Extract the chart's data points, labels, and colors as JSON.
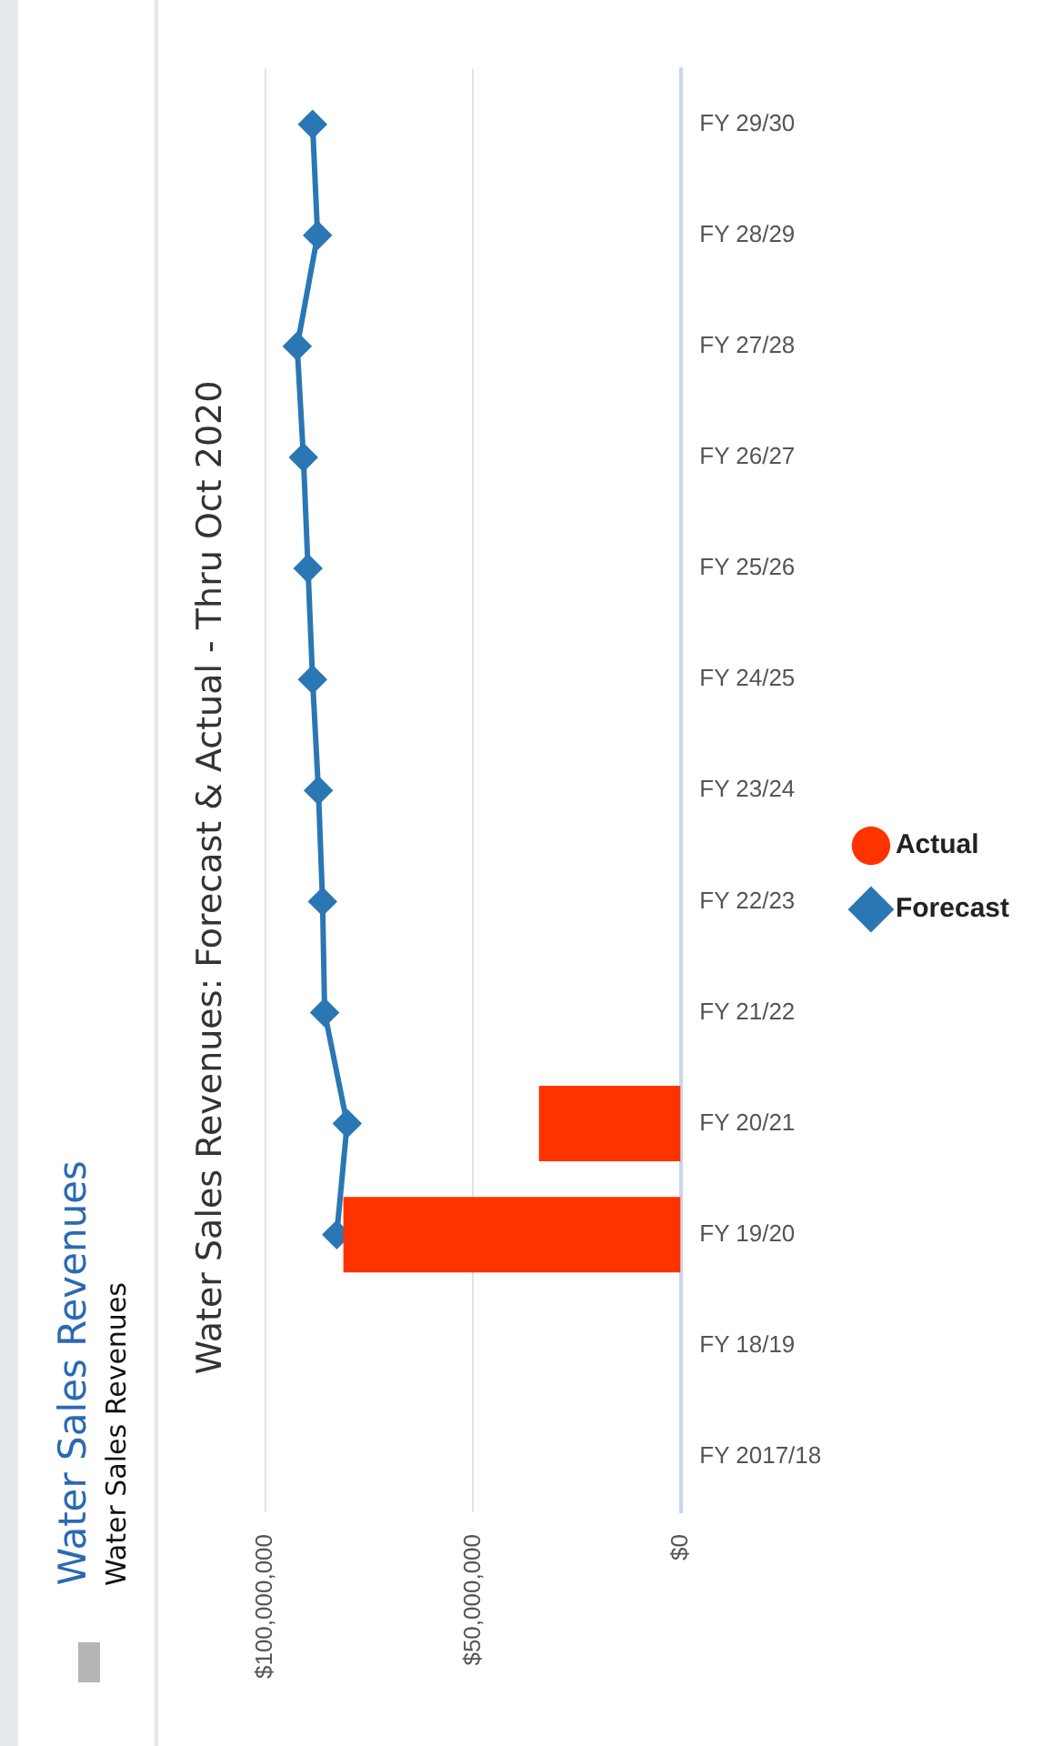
{
  "chart_data": {
    "type": "bar",
    "orientation": "horizontal",
    "title": "Water Sales Revenues: Forecast & Actual - Thru Oct 2020",
    "annotations": [
      "Water Sales Revenues",
      "Water Sales Revenues"
    ],
    "categories": [
      "FY 29/30",
      "FY 28/29",
      "FY 27/28",
      "FY 26/27",
      "FY 25/26",
      "FY 24/25",
      "FY 23/24",
      "FY 22/23",
      "FY 21/22",
      "FY 20/21",
      "FY 19/20",
      "FY 18/19",
      "FY 2017/18"
    ],
    "series": [
      {
        "name": "Actual",
        "color": "#ff3300",
        "values": [
          null,
          null,
          null,
          null,
          null,
          null,
          null,
          null,
          null,
          34200000,
          81200000,
          null,
          null
        ]
      },
      {
        "name": "Forecast",
        "type": "line",
        "color": "#2a77b4",
        "values": [
          88600000,
          87400000,
          92300000,
          90800000,
          89700000,
          88600000,
          87200000,
          86200000,
          85700000,
          80300000,
          82800000,
          null,
          null
        ]
      }
    ],
    "marker": "diamond",
    "xlim": [
      100000000,
      0
    ],
    "xticks": [
      {
        "value": 0,
        "label": "$0"
      },
      {
        "value": 50000000,
        "label": "$50,000,000"
      },
      {
        "value": 100000000,
        "label": "$100,000,000"
      }
    ],
    "grid": "x",
    "legend": "right"
  }
}
